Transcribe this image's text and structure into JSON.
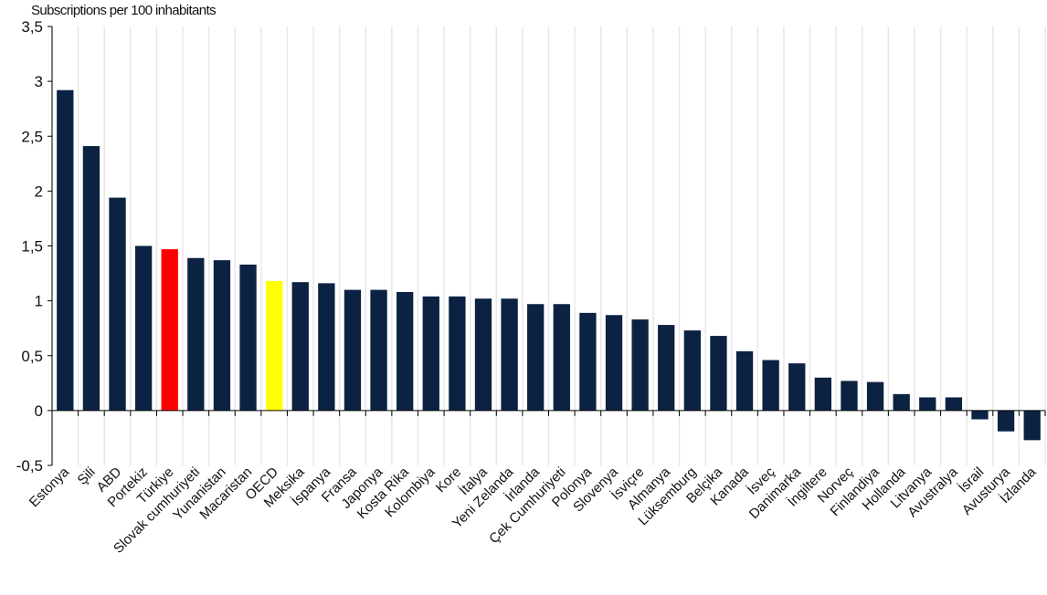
{
  "chart_data": {
    "type": "bar",
    "title": "",
    "xlabel": "",
    "ylabel": "Subscriptions per 100 inhabitants",
    "ylim": [
      -0.5,
      3.5
    ],
    "yticks": [
      "-0,5",
      "0",
      "0,5",
      "1",
      "1,5",
      "2",
      "2,5",
      "3",
      "3,5"
    ],
    "grid": "vertical",
    "legend": "none",
    "categories": [
      "Estonya",
      "Şili",
      "ABD",
      "Portekiz",
      "Türkiye",
      "Slovak cumhuriyeti",
      "Yunanistan",
      "Macaristan",
      "OECD",
      "Meksika",
      "İspanya",
      "Fransa",
      "Japonya",
      "Kosta Rika",
      "Kolombiya",
      "Kore",
      "İtalya",
      "Yeni Zelanda",
      "İrlanda",
      "Çek Cumhuriyeti",
      "Polonya",
      "Slovenya",
      "İsviçre",
      "Almanya",
      "Lüksemburg",
      "Belçika",
      "Kanada",
      "İsveç",
      "Danimarka",
      "İngiltere",
      "Norveç",
      "Finlandiya",
      "Hollanda",
      "Litvanya",
      "Avustralya",
      "İsrail",
      "Avusturya",
      "İzlanda"
    ],
    "values": [
      2.92,
      2.41,
      1.94,
      1.5,
      1.47,
      1.39,
      1.37,
      1.33,
      1.18,
      1.17,
      1.16,
      1.1,
      1.1,
      1.08,
      1.04,
      1.04,
      1.02,
      1.02,
      0.97,
      0.97,
      0.89,
      0.87,
      0.83,
      0.78,
      0.73,
      0.68,
      0.54,
      0.46,
      0.43,
      0.3,
      0.27,
      0.26,
      0.15,
      0.12,
      0.12,
      -0.08,
      -0.19,
      -0.27
    ],
    "colors": {
      "default": "#0b2242",
      "highlight_turkiye": "#ff0000",
      "highlight_oecd": "#ffff00",
      "grid": "#e6e6e6",
      "axis": "#000000"
    }
  }
}
